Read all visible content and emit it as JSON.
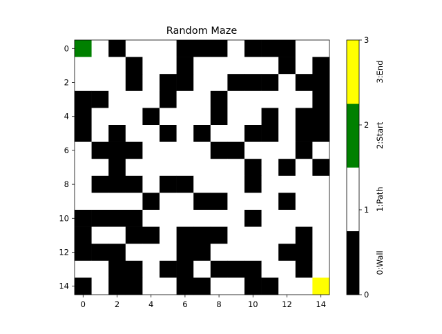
{
  "chart_data": {
    "type": "heatmap",
    "title": "Random Maze",
    "xlabel": "",
    "ylabel": "",
    "x_ticks": [
      "0",
      "2",
      "4",
      "6",
      "8",
      "10",
      "12",
      "14"
    ],
    "y_ticks": [
      "0",
      "2",
      "4",
      "6",
      "8",
      "10",
      "12",
      "14"
    ],
    "grid": false,
    "legend": "colorbar-right",
    "colors": {
      "0": "#000000",
      "1": "#ffffff",
      "2": "#008000",
      "3": "#ffff00"
    },
    "colorbar": {
      "ticks": [
        "0",
        "1",
        "2",
        "3"
      ],
      "labels": [
        "0:Wall",
        "1:Path",
        "2:Start",
        "3:End"
      ],
      "range": [
        0,
        3
      ]
    },
    "grid_values": [
      [
        2,
        1,
        0,
        1,
        1,
        1,
        0,
        0,
        0,
        1,
        0,
        0,
        0,
        1,
        1
      ],
      [
        1,
        1,
        1,
        0,
        1,
        1,
        0,
        1,
        1,
        1,
        1,
        1,
        0,
        1,
        0
      ],
      [
        1,
        1,
        1,
        0,
        1,
        0,
        0,
        1,
        1,
        0,
        0,
        0,
        1,
        0,
        0
      ],
      [
        0,
        0,
        1,
        1,
        1,
        0,
        1,
        1,
        0,
        1,
        1,
        1,
        1,
        1,
        0
      ],
      [
        0,
        1,
        1,
        1,
        0,
        1,
        1,
        1,
        0,
        1,
        1,
        0,
        1,
        0,
        0
      ],
      [
        0,
        1,
        0,
        1,
        1,
        0,
        1,
        0,
        1,
        1,
        0,
        0,
        1,
        0,
        0
      ],
      [
        1,
        0,
        0,
        0,
        1,
        1,
        1,
        1,
        0,
        0,
        1,
        1,
        1,
        0,
        1
      ],
      [
        1,
        1,
        0,
        1,
        1,
        1,
        1,
        1,
        1,
        1,
        0,
        1,
        0,
        1,
        0
      ],
      [
        1,
        0,
        0,
        0,
        1,
        0,
        0,
        1,
        1,
        1,
        0,
        1,
        1,
        1,
        1
      ],
      [
        1,
        1,
        1,
        1,
        0,
        1,
        1,
        0,
        0,
        1,
        1,
        1,
        0,
        1,
        1
      ],
      [
        0,
        0,
        0,
        0,
        1,
        1,
        1,
        1,
        1,
        1,
        0,
        1,
        1,
        1,
        1
      ],
      [
        0,
        1,
        1,
        0,
        0,
        1,
        0,
        0,
        0,
        1,
        1,
        1,
        1,
        0,
        1
      ],
      [
        0,
        0,
        0,
        1,
        1,
        1,
        0,
        0,
        1,
        1,
        1,
        1,
        0,
        0,
        1
      ],
      [
        1,
        1,
        0,
        0,
        1,
        0,
        0,
        1,
        0,
        0,
        0,
        1,
        1,
        0,
        1
      ],
      [
        0,
        1,
        0,
        0,
        1,
        1,
        0,
        0,
        1,
        1,
        0,
        0,
        1,
        1,
        3
      ]
    ]
  }
}
